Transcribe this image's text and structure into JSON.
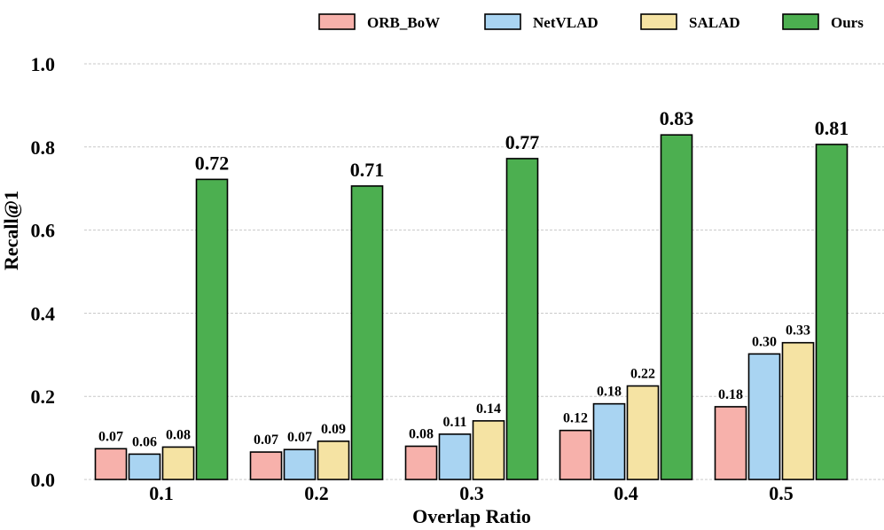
{
  "chart_data": {
    "type": "bar",
    "title": "",
    "xlabel": "Overlap Ratio",
    "ylabel": "Recall@1",
    "ylim": [
      0,
      1.0
    ],
    "yticks": [
      "0.0",
      "0.2",
      "0.4",
      "0.6",
      "0.8",
      "1.0"
    ],
    "grid": true,
    "legend_position": "top-right",
    "categories": [
      "0.1",
      "0.2",
      "0.3",
      "0.4",
      "0.5"
    ],
    "series": [
      {
        "name": "ORB_BoW",
        "color": "#f7b1ab",
        "values": [
          0.074,
          0.066,
          0.08,
          0.118,
          0.175
        ],
        "labels": [
          "0.07",
          "0.07",
          "0.08",
          "0.12",
          "0.18"
        ]
      },
      {
        "name": "NetVLAD",
        "color": "#a9d4f2",
        "values": [
          0.061,
          0.072,
          0.109,
          0.182,
          0.302
        ],
        "labels": [
          "0.06",
          "0.07",
          "0.11",
          "0.18",
          "0.30"
        ]
      },
      {
        "name": "SALAD",
        "color": "#f5e3a3",
        "values": [
          0.078,
          0.092,
          0.141,
          0.225,
          0.329
        ],
        "labels": [
          "0.08",
          "0.09",
          "0.14",
          "0.22",
          "0.33"
        ]
      },
      {
        "name": "Ours",
        "color": "#4caf50",
        "values": [
          0.722,
          0.706,
          0.772,
          0.829,
          0.806
        ],
        "labels": [
          "0.72",
          "0.71",
          "0.77",
          "0.83",
          "0.81"
        ]
      }
    ]
  }
}
